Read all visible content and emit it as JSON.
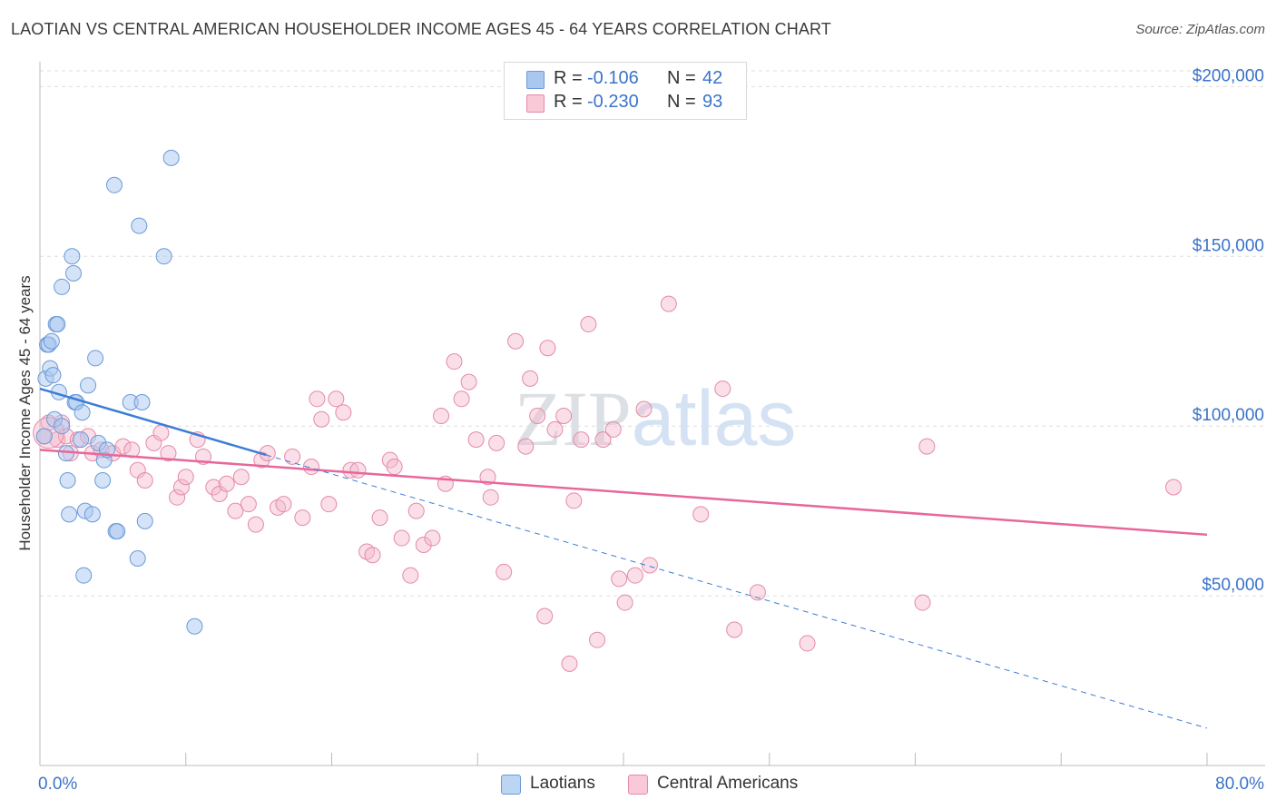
{
  "title": "LAOTIAN VS CENTRAL AMERICAN HOUSEHOLDER INCOME AGES 45 - 64 YEARS CORRELATION CHART",
  "source": "Source: ZipAtlas.com",
  "watermark": "ZIPatlas",
  "legend_top": {
    "rows": [
      {
        "r_label": "R =",
        "r_value": "-0.106",
        "n_label": "N =",
        "n_value": "42"
      },
      {
        "r_label": "R =",
        "r_value": "-0.230",
        "n_label": "N =",
        "n_value": "93"
      }
    ]
  },
  "legend_bottom": [
    "Laotians",
    "Central Americans"
  ],
  "colors": {
    "blue_fill": "#a9c8ef",
    "blue_stroke": "#6a9ad8",
    "blue_line": "#3b7dd8",
    "pink_fill": "#f5b9cc",
    "pink_stroke": "#e48aa9",
    "pink_line": "#e8679a",
    "axis_text": "#3b73c9",
    "grid": "#dedede"
  },
  "chart_data": {
    "type": "scatter",
    "title": "LAOTIAN VS CENTRAL AMERICAN HOUSEHOLDER INCOME AGES 45 - 64 YEARS CORRELATION CHART",
    "xlabel": "",
    "ylabel": "Householder Income Ages 45 - 64 years",
    "xlim": [
      0,
      80
    ],
    "ylim": [
      0,
      210000
    ],
    "x_tick_labels": [
      "0.0%",
      "80.0%"
    ],
    "y_ticks": [
      50000,
      100000,
      150000,
      200000
    ],
    "y_tick_labels": [
      "$50,000",
      "$100,000",
      "$150,000",
      "$200,000"
    ],
    "series": [
      {
        "name": "Laotians",
        "trend": {
          "x": [
            0,
            15.5
          ],
          "y": [
            111000,
            91500
          ]
        },
        "trend_extended": {
          "x": [
            15.5,
            80
          ],
          "y": [
            91500,
            11000
          ]
        },
        "points": [
          [
            0.3,
            97000
          ],
          [
            0.4,
            114000
          ],
          [
            0.5,
            124000
          ],
          [
            0.6,
            124000
          ],
          [
            0.7,
            117000
          ],
          [
            0.8,
            125000
          ],
          [
            0.9,
            115000
          ],
          [
            1.0,
            102000
          ],
          [
            1.1,
            130000
          ],
          [
            1.2,
            130000
          ],
          [
            1.3,
            110000
          ],
          [
            1.5,
            141000
          ],
          [
            1.5,
            100000
          ],
          [
            1.8,
            92000
          ],
          [
            1.9,
            84000
          ],
          [
            2.0,
            74000
          ],
          [
            2.2,
            150000
          ],
          [
            2.3,
            145000
          ],
          [
            2.4,
            107000
          ],
          [
            2.5,
            107000
          ],
          [
            2.8,
            96000
          ],
          [
            2.9,
            104000
          ],
          [
            3.0,
            56000
          ],
          [
            3.1,
            75000
          ],
          [
            3.3,
            112000
          ],
          [
            3.6,
            74000
          ],
          [
            3.8,
            120000
          ],
          [
            4.0,
            95000
          ],
          [
            4.3,
            84000
          ],
          [
            4.4,
            90000
          ],
          [
            4.6,
            93000
          ],
          [
            5.1,
            171000
          ],
          [
            5.2,
            69000
          ],
          [
            5.3,
            69000
          ],
          [
            6.2,
            107000
          ],
          [
            6.7,
            61000
          ],
          [
            6.8,
            159000
          ],
          [
            7.0,
            107000
          ],
          [
            7.2,
            72000
          ],
          [
            8.5,
            150000
          ],
          [
            9.0,
            179000
          ],
          [
            10.6,
            41000
          ]
        ]
      },
      {
        "name": "Central Americans",
        "trend": {
          "x": [
            0,
            80
          ],
          "y": [
            93000,
            68000
          ]
        },
        "points": [
          [
            0.3,
            97000
          ],
          [
            0.6,
            101000
          ],
          [
            1.2,
            96000
          ],
          [
            1.5,
            101000
          ],
          [
            1.8,
            97000
          ],
          [
            2.1,
            92000
          ],
          [
            2.6,
            96000
          ],
          [
            3.3,
            97000
          ],
          [
            3.6,
            92000
          ],
          [
            4.2,
            93000
          ],
          [
            5.0,
            92000
          ],
          [
            5.7,
            94000
          ],
          [
            6.3,
            93000
          ],
          [
            6.7,
            87000
          ],
          [
            7.2,
            84000
          ],
          [
            7.8,
            95000
          ],
          [
            8.3,
            98000
          ],
          [
            8.8,
            92000
          ],
          [
            9.4,
            79000
          ],
          [
            9.7,
            82000
          ],
          [
            10.0,
            85000
          ],
          [
            10.8,
            96000
          ],
          [
            11.2,
            91000
          ],
          [
            11.9,
            82000
          ],
          [
            12.3,
            80000
          ],
          [
            12.8,
            83000
          ],
          [
            13.4,
            75000
          ],
          [
            13.8,
            85000
          ],
          [
            14.3,
            77000
          ],
          [
            14.8,
            71000
          ],
          [
            15.2,
            90000
          ],
          [
            15.6,
            92000
          ],
          [
            16.3,
            76000
          ],
          [
            16.7,
            77000
          ],
          [
            17.3,
            91000
          ],
          [
            18.0,
            73000
          ],
          [
            18.6,
            88000
          ],
          [
            19.0,
            108000
          ],
          [
            19.3,
            102000
          ],
          [
            19.8,
            77000
          ],
          [
            20.3,
            108000
          ],
          [
            20.8,
            104000
          ],
          [
            21.3,
            87000
          ],
          [
            21.8,
            87000
          ],
          [
            22.4,
            63000
          ],
          [
            22.8,
            62000
          ],
          [
            23.3,
            73000
          ],
          [
            24.0,
            90000
          ],
          [
            24.3,
            88000
          ],
          [
            24.8,
            67000
          ],
          [
            25.4,
            56000
          ],
          [
            25.8,
            75000
          ],
          [
            26.3,
            65000
          ],
          [
            26.9,
            67000
          ],
          [
            27.5,
            103000
          ],
          [
            27.8,
            83000
          ],
          [
            28.4,
            119000
          ],
          [
            28.9,
            108000
          ],
          [
            29.4,
            113000
          ],
          [
            29.9,
            96000
          ],
          [
            30.7,
            85000
          ],
          [
            30.9,
            79000
          ],
          [
            31.3,
            95000
          ],
          [
            31.8,
            57000
          ],
          [
            32.6,
            125000
          ],
          [
            33.3,
            94000
          ],
          [
            33.6,
            114000
          ],
          [
            34.1,
            103000
          ],
          [
            34.6,
            44000
          ],
          [
            34.8,
            123000
          ],
          [
            35.3,
            99000
          ],
          [
            35.9,
            103000
          ],
          [
            36.3,
            30000
          ],
          [
            36.6,
            78000
          ],
          [
            37.1,
            96000
          ],
          [
            37.6,
            130000
          ],
          [
            38.2,
            37000
          ],
          [
            38.6,
            96000
          ],
          [
            39.3,
            99000
          ],
          [
            39.7,
            55000
          ],
          [
            40.1,
            48000
          ],
          [
            40.8,
            56000
          ],
          [
            41.4,
            105000
          ],
          [
            41.8,
            59000
          ],
          [
            43.1,
            136000
          ],
          [
            45.3,
            74000
          ],
          [
            46.8,
            111000
          ],
          [
            47.6,
            40000
          ],
          [
            49.2,
            51000
          ],
          [
            52.6,
            36000
          ],
          [
            60.5,
            48000
          ],
          [
            60.8,
            94000
          ],
          [
            77.7,
            82000
          ]
        ]
      }
    ]
  }
}
